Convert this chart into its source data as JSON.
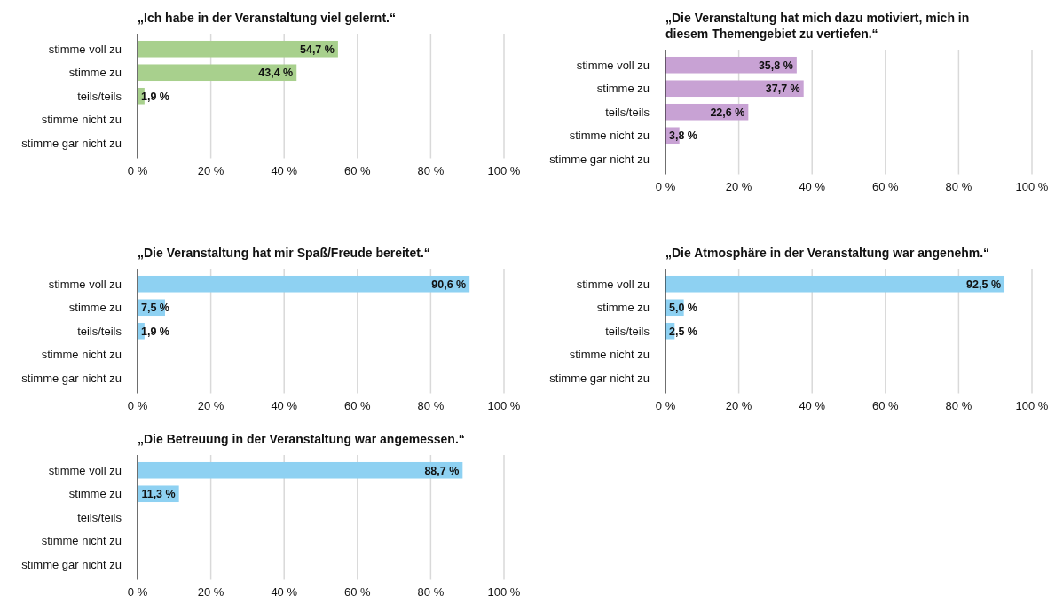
{
  "chart_data": [
    {
      "type": "bar",
      "orientation": "horizontal",
      "title": "„Ich habe in der Veranstaltung viel gelernt.“",
      "categories": [
        "stimme voll zu",
        "stimme zu",
        "teils/teils",
        "stimme nicht zu",
        "stimme gar nicht zu"
      ],
      "series": [
        {
          "color": "#a8d08d",
          "values": [
            54.7,
            43.4,
            1.9,
            0,
            0
          ],
          "value_labels": [
            "54,7 %",
            "43,4 %",
            "1,9 %",
            null,
            null
          ]
        }
      ],
      "xlim": [
        0,
        100
      ],
      "xticks": [
        {
          "value": 0,
          "label": "0 %"
        },
        {
          "value": 20,
          "label": "20 %"
        },
        {
          "value": 40,
          "label": "40 %"
        },
        {
          "value": 60,
          "label": "60 %"
        },
        {
          "value": 80,
          "label": "80 %"
        },
        {
          "value": 100,
          "label": "100 %"
        }
      ],
      "grid": "x"
    },
    {
      "type": "bar",
      "orientation": "horizontal",
      "title": "„Die Veranstaltung hat mich dazu motiviert, mich in diesem Themengebiet zu vertiefen.“",
      "categories": [
        "stimme voll zu",
        "stimme zu",
        "teils/teils",
        "stimme nicht zu",
        "stimme gar nicht zu"
      ],
      "series": [
        {
          "color": "#c8a2d4",
          "values": [
            35.8,
            37.7,
            22.6,
            3.8,
            0
          ],
          "value_labels": [
            "35,8 %",
            "37,7 %",
            "22,6 %",
            "3,8 %",
            null
          ]
        }
      ],
      "xlim": [
        0,
        100
      ],
      "xticks": [
        {
          "value": 0,
          "label": "0 %"
        },
        {
          "value": 20,
          "label": "20 %"
        },
        {
          "value": 40,
          "label": "40 %"
        },
        {
          "value": 60,
          "label": "60 %"
        },
        {
          "value": 80,
          "label": "80 %"
        },
        {
          "value": 100,
          "label": "100 %"
        }
      ],
      "grid": "x"
    },
    {
      "type": "bar",
      "orientation": "horizontal",
      "title": "„Die Veranstaltung hat mir Spaß/Freude bereitet.“",
      "categories": [
        "stimme voll zu",
        "stimme zu",
        "teils/teils",
        "stimme nicht zu",
        "stimme gar nicht zu"
      ],
      "series": [
        {
          "color": "#8ed1f2",
          "values": [
            90.6,
            7.5,
            1.9,
            0,
            0
          ],
          "value_labels": [
            "90,6 %",
            "7,5 %",
            "1,9 %",
            null,
            null
          ]
        }
      ],
      "xlim": [
        0,
        100
      ],
      "xticks": [
        {
          "value": 0,
          "label": "0 %"
        },
        {
          "value": 20,
          "label": "20 %"
        },
        {
          "value": 40,
          "label": "40 %"
        },
        {
          "value": 60,
          "label": "60 %"
        },
        {
          "value": 80,
          "label": "80 %"
        },
        {
          "value": 100,
          "label": "100 %"
        }
      ],
      "grid": "x"
    },
    {
      "type": "bar",
      "orientation": "horizontal",
      "title": "„Die Atmosphäre in der Veranstaltung war angenehm.“",
      "categories": [
        "stimme voll zu",
        "stimme zu",
        "teils/teils",
        "stimme nicht zu",
        "stimme gar nicht zu"
      ],
      "series": [
        {
          "color": "#8ed1f2",
          "values": [
            92.5,
            5.0,
            2.5,
            0,
            0
          ],
          "value_labels": [
            "92,5 %",
            "5,0 %",
            "2,5 %",
            null,
            null
          ]
        }
      ],
      "xlim": [
        0,
        100
      ],
      "xticks": [
        {
          "value": 0,
          "label": "0 %"
        },
        {
          "value": 20,
          "label": "20 %"
        },
        {
          "value": 40,
          "label": "40 %"
        },
        {
          "value": 60,
          "label": "60 %"
        },
        {
          "value": 80,
          "label": "80 %"
        },
        {
          "value": 100,
          "label": "100 %"
        }
      ],
      "grid": "x"
    },
    {
      "type": "bar",
      "orientation": "horizontal",
      "title": "„Die Betreuung in der Veranstaltung war angemessen.“",
      "categories": [
        "stimme voll zu",
        "stimme zu",
        "teils/teils",
        "stimme nicht zu",
        "stimme gar nicht zu"
      ],
      "series": [
        {
          "color": "#8ed1f2",
          "values": [
            88.7,
            11.3,
            0,
            0,
            0
          ],
          "value_labels": [
            "88,7 %",
            "11,3 %",
            null,
            null,
            null
          ]
        }
      ],
      "xlim": [
        0,
        100
      ],
      "xticks": [
        {
          "value": 0,
          "label": "0 %"
        },
        {
          "value": 20,
          "label": "20 %"
        },
        {
          "value": 40,
          "label": "40 %"
        },
        {
          "value": 60,
          "label": "60 %"
        },
        {
          "value": 80,
          "label": "80 %"
        },
        {
          "value": 100,
          "label": "100 %"
        }
      ],
      "grid": "x"
    }
  ]
}
